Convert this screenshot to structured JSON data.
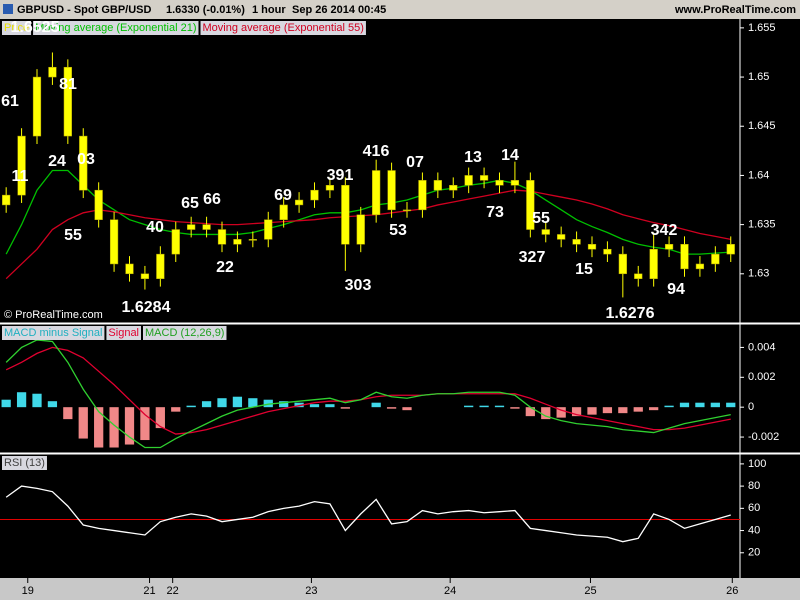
{
  "header": {
    "symbol": "GBPUSD - Spot GBP/USD",
    "last": "1.6330 (-0.01%)",
    "period": "1 hour",
    "date": "Sep 26 2014 00:45",
    "site": "www.ProRealTime.com"
  },
  "chart_data": [
    {
      "type": "candlestick",
      "watermark": "© ProRealTime.com",
      "x": [
        0,
        1,
        2,
        3,
        4,
        5,
        6,
        7,
        8,
        9,
        10,
        11,
        12,
        13,
        14,
        15,
        16,
        17,
        18,
        19,
        20,
        21,
        22,
        23,
        24,
        25,
        26,
        27,
        28,
        29,
        30,
        31,
        32,
        33,
        34,
        35,
        36,
        37,
        38,
        39,
        40,
        41,
        42,
        43,
        44,
        45,
        46,
        47
      ],
      "xlim": [
        -0.4,
        47.6
      ],
      "ylim": [
        1.6251,
        1.6558
      ],
      "yticks": [
        1.63,
        1.635,
        1.64,
        1.645,
        1.65,
        1.655
      ],
      "price_name": "Price",
      "price_color": "#ffff00",
      "open": [
        1.637,
        1.638,
        1.644,
        1.65,
        1.651,
        1.644,
        1.6385,
        1.6355,
        1.631,
        1.63,
        1.6295,
        1.632,
        1.6345,
        1.635,
        1.6345,
        1.633,
        1.6335,
        1.6335,
        1.6355,
        1.637,
        1.6375,
        1.6385,
        1.639,
        1.633,
        1.636,
        1.6405,
        1.6365,
        1.6365,
        1.6395,
        1.6385,
        1.639,
        1.64,
        1.6395,
        1.639,
        1.6395,
        1.6345,
        1.634,
        1.6335,
        1.633,
        1.6325,
        1.632,
        1.63,
        1.6295,
        1.6325,
        1.633,
        1.6305,
        1.631,
        1.632
      ],
      "high": [
        1.6388,
        1.6448,
        1.6508,
        1.6525,
        1.6518,
        1.6448,
        1.6393,
        1.6363,
        1.6318,
        1.6308,
        1.6328,
        1.6353,
        1.6358,
        1.6358,
        1.6353,
        1.6343,
        1.6343,
        1.6363,
        1.6378,
        1.6383,
        1.6393,
        1.6398,
        1.6398,
        1.6368,
        1.6416,
        1.6413,
        1.6373,
        1.6403,
        1.6403,
        1.6398,
        1.6408,
        1.6408,
        1.6403,
        1.6414,
        1.6403,
        1.6353,
        1.6348,
        1.6343,
        1.6338,
        1.6333,
        1.6328,
        1.6308,
        1.6342,
        1.6338,
        1.6338,
        1.6318,
        1.6328,
        1.6338
      ],
      "low": [
        1.6362,
        1.6372,
        1.6432,
        1.6492,
        1.6432,
        1.6377,
        1.6347,
        1.6302,
        1.6292,
        1.6284,
        1.6287,
        1.6312,
        1.6337,
        1.6337,
        1.6322,
        1.6322,
        1.6327,
        1.6327,
        1.6347,
        1.6362,
        1.6367,
        1.6377,
        1.6303,
        1.6322,
        1.6352,
        1.6357,
        1.6357,
        1.6357,
        1.6377,
        1.6377,
        1.6382,
        1.6387,
        1.6382,
        1.6382,
        1.6337,
        1.6332,
        1.6327,
        1.6322,
        1.6317,
        1.6312,
        1.6276,
        1.6287,
        1.6287,
        1.6317,
        1.6297,
        1.6297,
        1.6302,
        1.6312
      ],
      "close": [
        1.638,
        1.644,
        1.65,
        1.651,
        1.644,
        1.6385,
        1.6355,
        1.631,
        1.63,
        1.6295,
        1.632,
        1.6345,
        1.635,
        1.6345,
        1.633,
        1.6335,
        1.6335,
        1.6355,
        1.637,
        1.6375,
        1.6385,
        1.639,
        1.633,
        1.636,
        1.6405,
        1.6365,
        1.6365,
        1.6395,
        1.6385,
        1.639,
        1.64,
        1.6395,
        1.639,
        1.6395,
        1.6345,
        1.634,
        1.6335,
        1.633,
        1.6325,
        1.632,
        1.63,
        1.6295,
        1.6325,
        1.633,
        1.6305,
        1.631,
        1.632,
        1.633
      ],
      "series": [
        {
          "name": "Moving average (Exponential 21)",
          "color": "#00c000",
          "values": [
            1.632,
            1.635,
            1.6385,
            1.6405,
            1.6405,
            1.639,
            1.6375,
            1.6365,
            1.6355,
            1.635,
            1.6345,
            1.6342,
            1.634,
            1.634,
            1.634,
            1.634,
            1.6342,
            1.6346,
            1.635,
            1.6355,
            1.636,
            1.6362,
            1.6362,
            1.6365,
            1.637,
            1.6372,
            1.6375,
            1.638,
            1.6385,
            1.6387,
            1.639,
            1.6392,
            1.6395,
            1.6392,
            1.6385,
            1.6375,
            1.6365,
            1.6355,
            1.6348,
            1.6342,
            1.6335,
            1.633,
            1.6327,
            1.6325,
            1.632,
            1.632,
            1.6321,
            1.6322
          ]
        },
        {
          "name": "Moving average (Exponential 55)",
          "color": "#d00020",
          "values": [
            1.6295,
            1.631,
            1.6325,
            1.6345,
            1.6355,
            1.6362,
            1.6365,
            1.6363,
            1.636,
            1.6357,
            1.6355,
            1.6353,
            1.6352,
            1.6351,
            1.635,
            1.635,
            1.6351,
            1.6352,
            1.6353,
            1.6354,
            1.6355,
            1.6357,
            1.6358,
            1.6359,
            1.636,
            1.6362,
            1.6364,
            1.6366,
            1.637,
            1.6373,
            1.6376,
            1.6379,
            1.6382,
            1.6385,
            1.6384,
            1.6381,
            1.6378,
            1.6375,
            1.6371,
            1.6366,
            1.636,
            1.6356,
            1.6352,
            1.6349,
            1.6345,
            1.6341,
            1.6338,
            1.6335
          ]
        }
      ],
      "annotations": [
        "1.6525",
        "61",
        "11",
        "81",
        "24",
        "03",
        "55",
        "40",
        "65",
        "66",
        "22",
        "69",
        "391",
        "416",
        "53",
        "303",
        "07",
        "13",
        "73",
        "14",
        "55",
        "327",
        "15",
        "342",
        "94",
        "1.6284",
        "1.6276"
      ]
    },
    {
      "type": "macd",
      "ylim": [
        -0.003,
        0.0055
      ],
      "yticks": [
        0.004,
        0.002,
        0,
        -0.002
      ],
      "histogram": {
        "name": "MACD minus Signal",
        "color": "#40d8e8",
        "negative_color": "#f08888",
        "values": [
          0.0005,
          0.001,
          0.0009,
          0.0004,
          -0.0008,
          -0.0021,
          -0.0027,
          -0.0027,
          -0.0025,
          -0.0022,
          -0.0014,
          -0.0003,
          0.0001,
          0.0004,
          0.0006,
          0.0007,
          0.0006,
          0.0005,
          0.0004,
          0.0003,
          0.0002,
          0.0002,
          -0.0001,
          0.0,
          0.0003,
          -0.0001,
          -0.0002,
          0.0,
          0.0,
          0.0,
          0.0001,
          0.0001,
          0.0001,
          -0.0001,
          -0.0006,
          -0.0008,
          -0.0007,
          -0.0006,
          -0.0005,
          -0.0004,
          -0.0004,
          -0.0003,
          -0.0002,
          0.0001,
          0.0003,
          0.0003,
          0.0003,
          0.0003
        ]
      },
      "series": [
        {
          "name": "Signal",
          "color": "#e00030",
          "values": [
            0.0025,
            0.003,
            0.0036,
            0.004,
            0.0038,
            0.0033,
            0.0024,
            0.0015,
            0.0005,
            -0.0005,
            -0.0013,
            -0.0018,
            -0.0017,
            -0.0015,
            -0.0012,
            -0.0009,
            -0.0006,
            -0.0003,
            -0.0001,
            0.0001,
            0.0003,
            0.0004,
            0.0004,
            0.0005,
            0.0007,
            0.0008,
            0.0008,
            0.0008,
            0.0009,
            0.0009,
            0.0009,
            0.0009,
            0.0009,
            0.0009,
            0.0006,
            0.0002,
            -0.0002,
            -0.0005,
            -0.0007,
            -0.0009,
            -0.0011,
            -0.0013,
            -0.0015,
            -0.0015,
            -0.0014,
            -0.0012,
            -0.001,
            -0.0008
          ]
        },
        {
          "name": "MACD (12,26,9)",
          "color": "#30d030",
          "values": [
            0.003,
            0.004,
            0.0045,
            0.0044,
            0.003,
            0.0012,
            -0.0003,
            -0.0012,
            -0.002,
            -0.0027,
            -0.0027,
            -0.0021,
            -0.0016,
            -0.0011,
            -0.0006,
            -0.0002,
            0.0,
            0.0002,
            0.0003,
            0.0004,
            0.0005,
            0.0006,
            0.0003,
            0.0005,
            0.001,
            0.0007,
            0.0006,
            0.0008,
            0.0009,
            0.0009,
            0.001,
            0.001,
            0.001,
            0.0008,
            0.0,
            -0.0006,
            -0.0009,
            -0.0011,
            -0.0012,
            -0.0013,
            -0.0015,
            -0.0016,
            -0.0017,
            -0.0014,
            -0.0011,
            -0.0009,
            -0.0007,
            -0.0005
          ]
        }
      ]
    },
    {
      "type": "line",
      "ylim": [
        -2.7,
        108
      ],
      "yticks": [
        20,
        40,
        60,
        80,
        100
      ],
      "reference_line": 50,
      "reference_color": "#e00000",
      "xticks": [
        {
          "value": 1.4,
          "label": "19"
        },
        {
          "value": 9.3,
          "label": "21"
        },
        {
          "value": 10.8,
          "label": "22"
        },
        {
          "value": 19.8,
          "label": "23"
        },
        {
          "value": 28.8,
          "label": "24"
        },
        {
          "value": 37.9,
          "label": "25"
        },
        {
          "value": 47.1,
          "label": "26"
        }
      ],
      "series": [
        {
          "name": "RSI (13)",
          "color": "#ffffff",
          "values": [
            70,
            80,
            78,
            75,
            62,
            45,
            42,
            40,
            38,
            36,
            48,
            52,
            55,
            53,
            48,
            50,
            52,
            57,
            60,
            62,
            66,
            64,
            40,
            55,
            68,
            46,
            48,
            58,
            55,
            57,
            58,
            56,
            57,
            58,
            42,
            40,
            38,
            36,
            35,
            34,
            30,
            33,
            55,
            50,
            42,
            46,
            50,
            54
          ]
        }
      ]
    }
  ]
}
